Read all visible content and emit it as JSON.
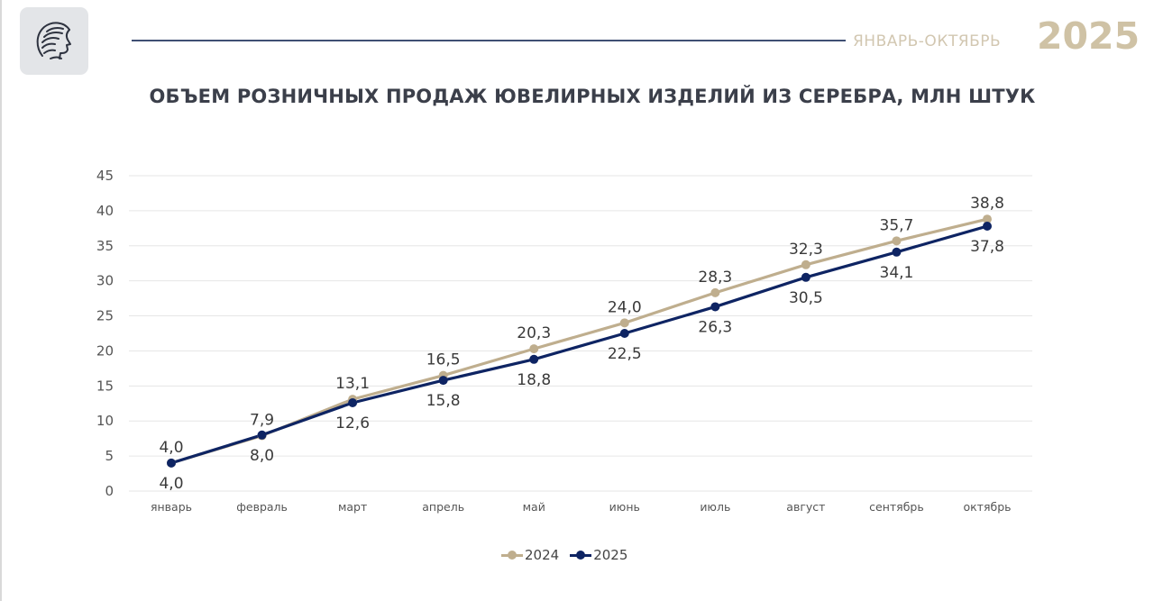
{
  "header": {
    "period": "ЯНВАРЬ-ОКТЯБРЬ",
    "year": "2025",
    "logo_icon": "woman-profile-logo-icon"
  },
  "colors": {
    "series_2024": "#bfae8e",
    "series_2025": "#0e2463",
    "gridline": "#e6e6e6",
    "header_rule": "#3f4f73",
    "year_text": "#cfc2a5"
  },
  "chart_data": {
    "type": "line",
    "title": "ОБЪЕМ РОЗНИЧНЫХ ПРОДАЖ ЮВЕЛИРНЫХ ИЗДЕЛИЙ ИЗ СЕРЕБРА, МЛН ШТУК",
    "xlabel": "",
    "ylabel": "",
    "categories": [
      "январь",
      "февраль",
      "март",
      "апрель",
      "май",
      "июнь",
      "июль",
      "август",
      "сентябрь",
      "октябрь"
    ],
    "ylim": [
      0,
      45
    ],
    "yticks": [
      "0",
      "5",
      "10",
      "15",
      "20",
      "25",
      "30",
      "35",
      "40",
      "45"
    ],
    "grid": true,
    "legend_position": "bottom",
    "series": [
      {
        "name": "2024",
        "values": [
          4.0,
          7.9,
          13.1,
          16.5,
          20.3,
          24.0,
          28.3,
          32.3,
          35.7,
          38.8
        ],
        "labels": [
          "4,0",
          "7,9",
          "13,1",
          "16,5",
          "20,3",
          "24,0",
          "28,3",
          "32,3",
          "35,7",
          "38,8"
        ],
        "label_position": "above"
      },
      {
        "name": "2025",
        "values": [
          4.0,
          8.0,
          12.6,
          15.8,
          18.8,
          22.5,
          26.3,
          30.5,
          34.1,
          37.8
        ],
        "labels": [
          "4,0",
          "8,0",
          "12,6",
          "15,8",
          "18,8",
          "22,5",
          "26,3",
          "30,5",
          "34,1",
          "37,8"
        ],
        "label_position": "below"
      }
    ]
  }
}
